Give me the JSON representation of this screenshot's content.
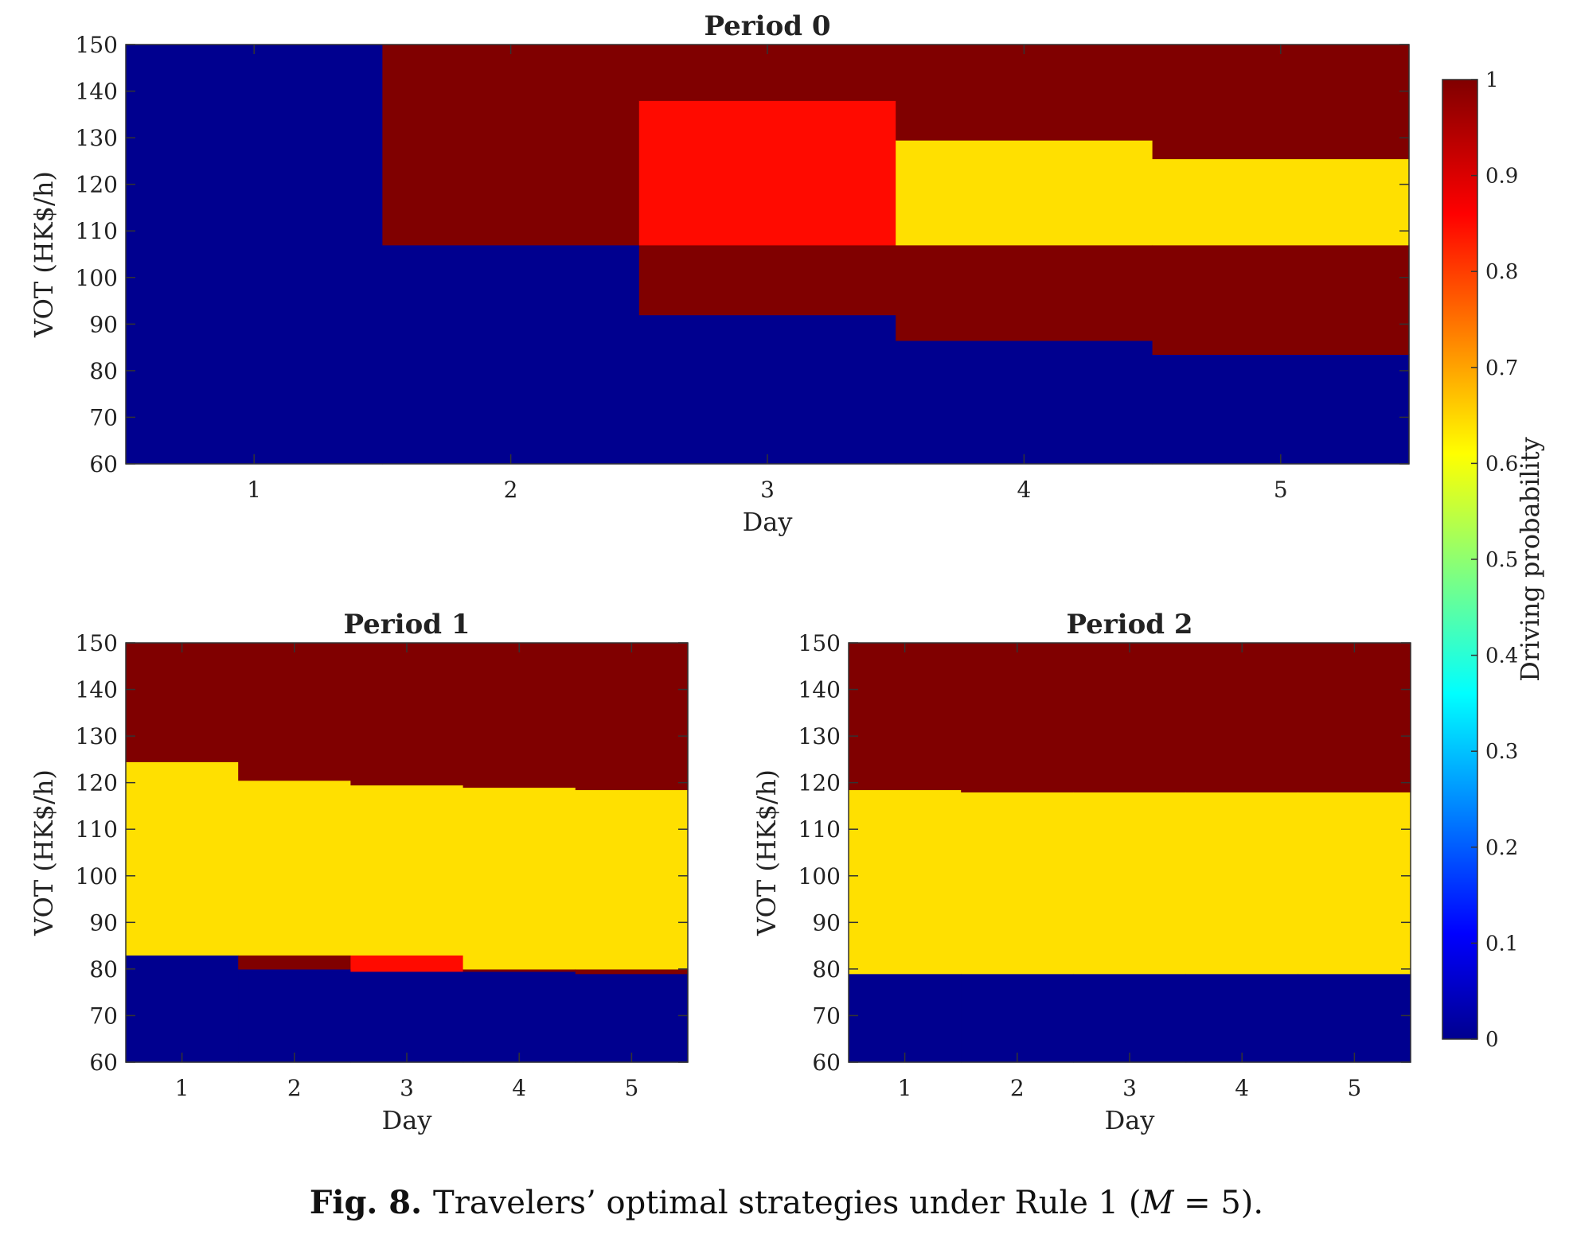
{
  "chart_data": [
    {
      "type": "heatmap",
      "title": "Period 0",
      "xlabel": "Day",
      "ylabel": "VOT (HK$/h)",
      "x_ticks": [
        1,
        2,
        3,
        4,
        5
      ],
      "y_ticks": [
        60,
        70,
        80,
        90,
        100,
        110,
        120,
        130,
        140,
        150
      ],
      "xlim": [
        0.5,
        5.5
      ],
      "ylim": [
        60,
        150
      ],
      "columns": [
        {
          "day": 1,
          "segments": [
            {
              "from": 60,
              "to": 150,
              "value": 0
            }
          ]
        },
        {
          "day": 2,
          "segments": [
            {
              "from": 60,
              "to": 107,
              "value": 0
            },
            {
              "from": 107,
              "to": 150,
              "value": 1
            }
          ]
        },
        {
          "day": 3,
          "segments": [
            {
              "from": 60,
              "to": 92,
              "value": 0
            },
            {
              "from": 92,
              "to": 107,
              "value": 1
            },
            {
              "from": 107,
              "to": 138,
              "value": 0.85
            },
            {
              "from": 138,
              "to": 150,
              "value": 1
            }
          ]
        },
        {
          "day": 4,
          "segments": [
            {
              "from": 60,
              "to": 86.5,
              "value": 0
            },
            {
              "from": 86.5,
              "to": 107,
              "value": 1
            },
            {
              "from": 107,
              "to": 129.5,
              "value": 0.64
            },
            {
              "from": 129.5,
              "to": 150,
              "value": 1
            }
          ]
        },
        {
          "day": 5,
          "segments": [
            {
              "from": 60,
              "to": 83.5,
              "value": 0
            },
            {
              "from": 83.5,
              "to": 107,
              "value": 1
            },
            {
              "from": 107,
              "to": 125.5,
              "value": 0.64
            },
            {
              "from": 125.5,
              "to": 150,
              "value": 1
            }
          ]
        }
      ]
    },
    {
      "type": "heatmap",
      "title": "Period 1",
      "xlabel": "Day",
      "ylabel": "VOT (HK$/h)",
      "x_ticks": [
        1,
        2,
        3,
        4,
        5
      ],
      "y_ticks": [
        60,
        70,
        80,
        90,
        100,
        110,
        120,
        130,
        140,
        150
      ],
      "xlim": [
        0.5,
        5.5
      ],
      "ylim": [
        60,
        150
      ],
      "columns": [
        {
          "day": 1,
          "segments": [
            {
              "from": 60,
              "to": 83,
              "value": 0
            },
            {
              "from": 83,
              "to": 124.5,
              "value": 0.64
            },
            {
              "from": 124.5,
              "to": 150,
              "value": 1
            }
          ]
        },
        {
          "day": 2,
          "segments": [
            {
              "from": 60,
              "to": 80,
              "value": 0
            },
            {
              "from": 80,
              "to": 83,
              "value": 1
            },
            {
              "from": 83,
              "to": 120.5,
              "value": 0.64
            },
            {
              "from": 120.5,
              "to": 150,
              "value": 1
            }
          ]
        },
        {
          "day": 3,
          "segments": [
            {
              "from": 60,
              "to": 79.5,
              "value": 0
            },
            {
              "from": 79.5,
              "to": 83,
              "value": 0.85
            },
            {
              "from": 83,
              "to": 119.5,
              "value": 0.64
            },
            {
              "from": 119.5,
              "to": 150,
              "value": 1
            }
          ]
        },
        {
          "day": 4,
          "segments": [
            {
              "from": 60,
              "to": 79.5,
              "value": 0
            },
            {
              "from": 79.5,
              "to": 80,
              "value": 1
            },
            {
              "from": 80,
              "to": 119,
              "value": 0.64
            },
            {
              "from": 119,
              "to": 150,
              "value": 1
            }
          ]
        },
        {
          "day": 5,
          "segments": [
            {
              "from": 60,
              "to": 79,
              "value": 0
            },
            {
              "from": 79,
              "to": 80,
              "value": 1
            },
            {
              "from": 80,
              "to": 118.5,
              "value": 0.64
            },
            {
              "from": 118.5,
              "to": 150,
              "value": 1
            }
          ]
        }
      ]
    },
    {
      "type": "heatmap",
      "title": "Period 2",
      "xlabel": "Day",
      "ylabel": "VOT (HK$/h)",
      "x_ticks": [
        1,
        2,
        3,
        4,
        5
      ],
      "y_ticks": [
        60,
        70,
        80,
        90,
        100,
        110,
        120,
        130,
        140,
        150
      ],
      "xlim": [
        0.5,
        5.5
      ],
      "ylim": [
        60,
        150
      ],
      "columns": [
        {
          "day": 1,
          "segments": [
            {
              "from": 60,
              "to": 79,
              "value": 0
            },
            {
              "from": 79,
              "to": 118.5,
              "value": 0.64
            },
            {
              "from": 118.5,
              "to": 150,
              "value": 1
            }
          ]
        },
        {
          "day": 2,
          "segments": [
            {
              "from": 60,
              "to": 79,
              "value": 0
            },
            {
              "from": 79,
              "to": 118,
              "value": 0.64
            },
            {
              "from": 118,
              "to": 150,
              "value": 1
            }
          ]
        },
        {
          "day": 3,
          "segments": [
            {
              "from": 60,
              "to": 79,
              "value": 0
            },
            {
              "from": 79,
              "to": 118,
              "value": 0.64
            },
            {
              "from": 118,
              "to": 150,
              "value": 1
            }
          ]
        },
        {
          "day": 4,
          "segments": [
            {
              "from": 60,
              "to": 79,
              "value": 0
            },
            {
              "from": 79,
              "to": 118,
              "value": 0.64
            },
            {
              "from": 118,
              "to": 150,
              "value": 1
            }
          ]
        },
        {
          "day": 5,
          "segments": [
            {
              "from": 60,
              "to": 79,
              "value": 0
            },
            {
              "from": 79,
              "to": 118,
              "value": 0.64
            },
            {
              "from": 118,
              "to": 150,
              "value": 1
            }
          ]
        }
      ]
    }
  ],
  "colorbar": {
    "label": "Driving probability",
    "range": [
      0,
      1
    ],
    "ticks": [
      "0",
      "0.1",
      "0.2",
      "0.3",
      "0.4",
      "0.5",
      "0.6",
      "0.7",
      "0.8",
      "0.9",
      "1"
    ],
    "colormap": "jet",
    "stops": [
      "#00008f",
      "#0000ff",
      "#00ffff",
      "#ffff00",
      "#ff0000",
      "#800000"
    ]
  },
  "caption": {
    "fig_number": "Fig. 8.",
    "text_before": "Travelers’ optimal strategies under Rule 1 (",
    "math_var": "M",
    "text_after": " = 5)."
  }
}
